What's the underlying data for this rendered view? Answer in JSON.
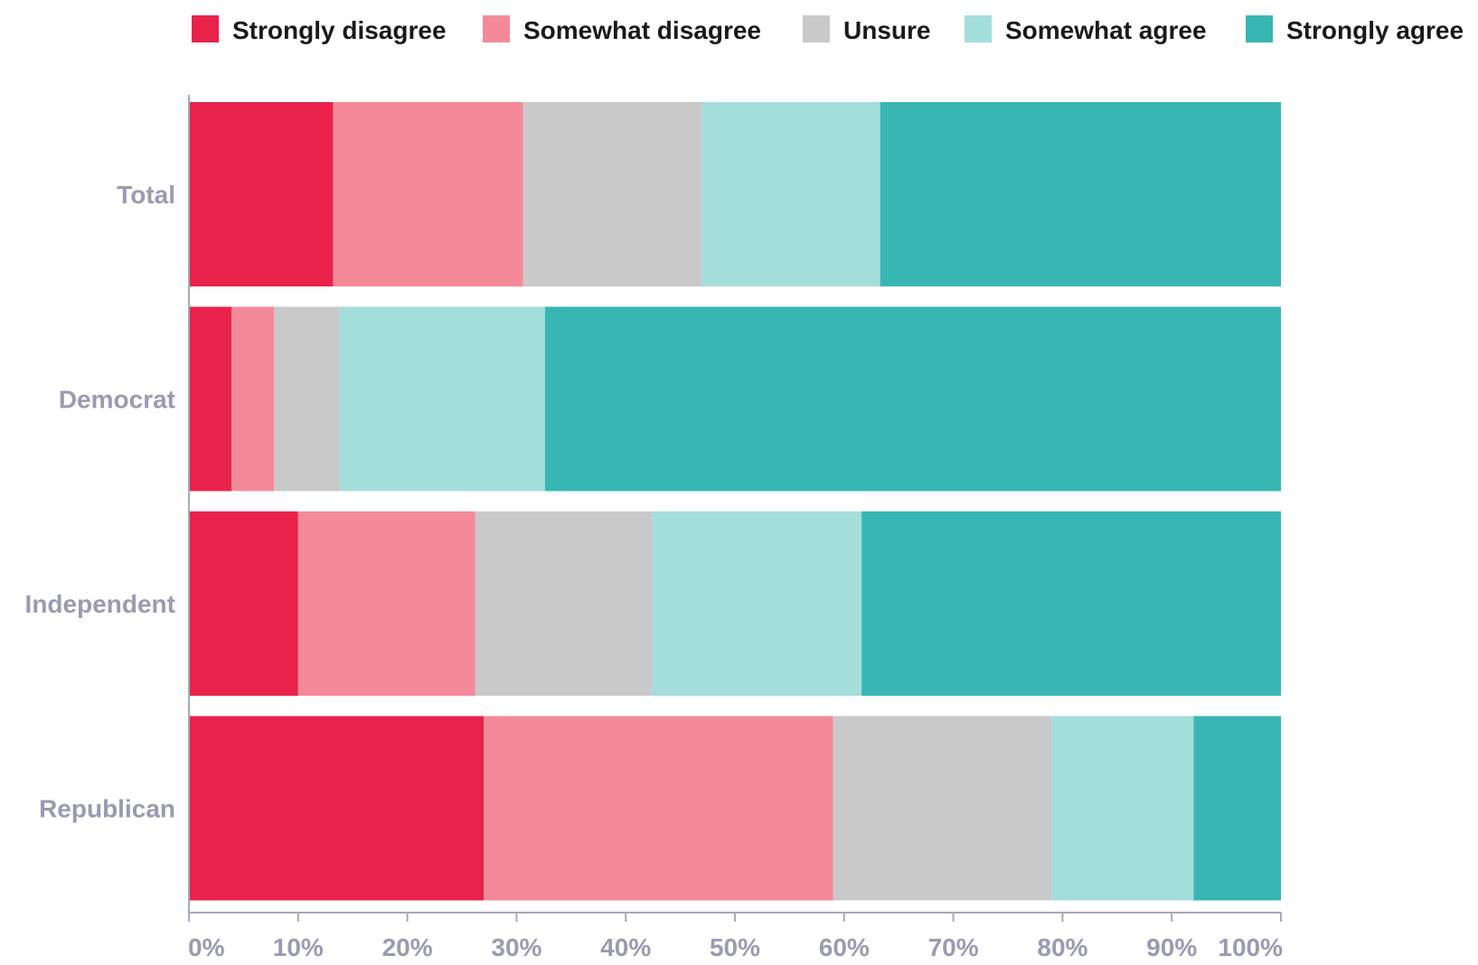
{
  "chart_data": {
    "type": "bar",
    "orientation": "horizontal",
    "stacked": true,
    "categories": [
      "Total",
      "Democrat",
      "Independent",
      "Republican"
    ],
    "series": [
      {
        "name": "Strongly disagree",
        "color": "#e8224b",
        "values": [
          13.2,
          3.9,
          10.0,
          27.0
        ]
      },
      {
        "name": "Somewhat disagree",
        "color": "#f4899a",
        "values": [
          17.4,
          3.9,
          16.2,
          32.0
        ]
      },
      {
        "name": "Unsure",
        "color": "#c9c9c9",
        "values": [
          16.4,
          6.0,
          16.2,
          20.0
        ]
      },
      {
        "name": "Somewhat agree",
        "color": "#a3dedb",
        "values": [
          16.3,
          18.8,
          19.2,
          13.0
        ]
      },
      {
        "name": "Strongly agree",
        "color": "#38b6b3",
        "values": [
          36.7,
          67.4,
          38.4,
          8.0
        ]
      }
    ],
    "xlim": [
      0,
      100
    ],
    "xticks": [
      "0%",
      "10%",
      "20%",
      "30%",
      "40%",
      "50%",
      "60%",
      "70%",
      "80%",
      "90%",
      "100%"
    ],
    "legend_position": "top",
    "grid": false
  }
}
